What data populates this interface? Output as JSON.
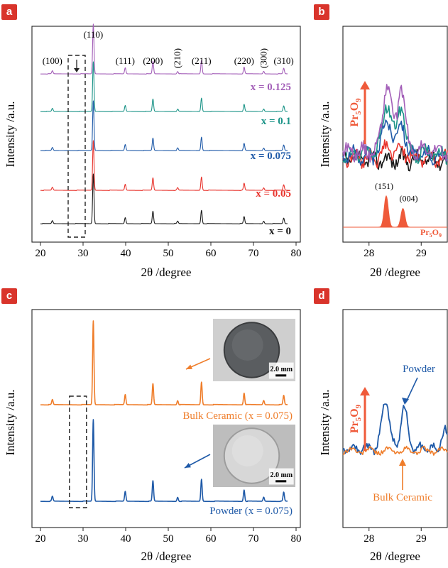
{
  "panel_labels": [
    "a",
    "b",
    "c",
    "d"
  ],
  "colors": {
    "x0": "#1a1a1a",
    "x005": "#e8332c",
    "x0075": "#1f5aa8",
    "x01": "#1c9488",
    "x0125": "#a35fb8",
    "bulk": "#ef7d2a",
    "powder": "#1f5aa8",
    "pr": "#ef5a3a",
    "arrow": "#ef5a3a"
  },
  "chart_data": [
    {
      "id": "a",
      "type": "line",
      "xlabel": "2θ /degree",
      "ylabel": "Intensity /a.u.",
      "xlim": [
        18,
        81
      ],
      "xticks": [
        20,
        30,
        40,
        50,
        60,
        70,
        80
      ],
      "peak_positions": [
        22.8,
        32.4,
        39.9,
        46.4,
        52.2,
        57.8,
        67.8,
        72.4,
        77.1
      ],
      "peak_heights": [
        0.06,
        1.0,
        0.12,
        0.25,
        0.05,
        0.27,
        0.14,
        0.05,
        0.11
      ],
      "hkl_labels": [
        "(100)",
        "(110)",
        "(111)",
        "(200)",
        "(210)",
        "(211)",
        "(220)",
        "(300)",
        "(310)"
      ],
      "hkl_positions": [
        22.8,
        32.4,
        39.9,
        46.4,
        52.2,
        57.8,
        67.8,
        72.4,
        77.1
      ],
      "highlight_box_x": [
        26.5,
        30.5
      ],
      "series": [
        {
          "name": "x = 0",
          "color_key": "x0"
        },
        {
          "name": "x = 0.05",
          "color_key": "x005"
        },
        {
          "name": "x = 0.075",
          "color_key": "x0075"
        },
        {
          "name": "x = 0.1",
          "color_key": "x01"
        },
        {
          "name": "x = 0.125",
          "color_key": "x0125"
        }
      ]
    },
    {
      "id": "b",
      "type": "line",
      "xlabel": "2θ /degree",
      "ylabel": "Intensity /a.u.",
      "xlim": [
        27.5,
        29.5
      ],
      "xticks": [
        28,
        29
      ],
      "annotation": {
        "text": "Pr",
        "sub1": "5",
        "mid": "O",
        "sub2": "9"
      },
      "reference": {
        "name": "Pr5O9",
        "peaks": [
          {
            "label": "(151)",
            "x": 28.33,
            "height": 1.0
          },
          {
            "label": "(004)",
            "x": 28.65,
            "height": 0.6
          }
        ]
      },
      "series": [
        {
          "name": "x = 0",
          "color_key": "x0"
        },
        {
          "name": "x = 0.05",
          "color_key": "x005"
        },
        {
          "name": "x = 0.075",
          "color_key": "x0075"
        },
        {
          "name": "x = 0.1",
          "color_key": "x01"
        },
        {
          "name": "x = 0.125",
          "color_key": "x0125"
        }
      ]
    },
    {
      "id": "c",
      "type": "line",
      "xlabel": "2θ /degree",
      "ylabel": "Intensity /a.u.",
      "xlim": [
        18,
        81
      ],
      "xticks": [
        20,
        30,
        40,
        50,
        60,
        70,
        80
      ],
      "highlight_box_x": [
        26.8,
        30.8
      ],
      "series": [
        {
          "name": "Bulk Ceramic (x = 0.075)",
          "color_key": "bulk"
        },
        {
          "name": "Powder (x = 0.075)",
          "color_key": "powder"
        }
      ],
      "insets": [
        {
          "scale_label": "2.0 mm"
        },
        {
          "scale_label": "2.0 mm"
        }
      ]
    },
    {
      "id": "d",
      "type": "line",
      "xlabel": "2θ /degree",
      "ylabel": "Intensity /a.u.",
      "xlim": [
        27.5,
        29.5
      ],
      "xticks": [
        28,
        29
      ],
      "annotation": {
        "text": "Pr",
        "sub1": "5",
        "mid": "O",
        "sub2": "9"
      },
      "series": [
        {
          "name": "Powder",
          "color_key": "powder"
        },
        {
          "name": "Bulk Ceramic",
          "color_key": "bulk"
        }
      ]
    }
  ]
}
